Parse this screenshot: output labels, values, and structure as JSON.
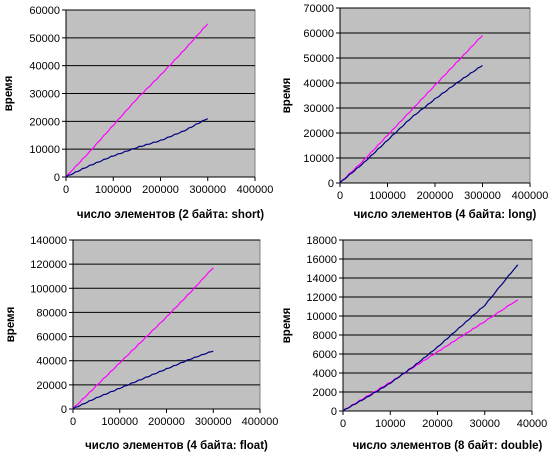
{
  "chart_data": [
    {
      "type": "line",
      "xlabel": "число элементов (2 байта: short)",
      "ylabel": "время",
      "xlim": [
        0,
        400000
      ],
      "ylim": [
        0,
        60000
      ],
      "xticks": [
        0,
        100000,
        200000,
        300000,
        400000
      ],
      "yticks": [
        0,
        10000,
        20000,
        30000,
        40000,
        50000,
        60000
      ],
      "grid": "horizontal",
      "plot_bg": "#c0c0c0",
      "series": [
        {
          "color": "#ff00ff",
          "x": [
            0,
            50000,
            100000,
            150000,
            200000,
            250000,
            300000
          ],
          "y": [
            0,
            9000,
            18500,
            28000,
            36500,
            45500,
            55000
          ]
        },
        {
          "color": "#000080",
          "x": [
            0,
            50000,
            100000,
            150000,
            200000,
            250000,
            300000
          ],
          "y": [
            0,
            4000,
            7500,
            10500,
            13000,
            16500,
            21000
          ]
        }
      ]
    },
    {
      "type": "line",
      "xlabel": "число элементов (4 байта: long)",
      "ylabel": "время",
      "xlim": [
        0,
        400000
      ],
      "ylim": [
        0,
        70000
      ],
      "xticks": [
        0,
        100000,
        200000,
        300000,
        400000
      ],
      "yticks": [
        0,
        10000,
        20000,
        30000,
        40000,
        50000,
        60000,
        70000
      ],
      "grid": "horizontal",
      "plot_bg": "#c0c0c0",
      "series": [
        {
          "color": "#ff00ff",
          "x": [
            0,
            50000,
            100000,
            150000,
            200000,
            250000,
            300000
          ],
          "y": [
            0,
            9000,
            19000,
            29000,
            39000,
            49000,
            59000
          ]
        },
        {
          "color": "#000080",
          "x": [
            0,
            50000,
            100000,
            150000,
            200000,
            250000,
            300000
          ],
          "y": [
            0,
            8000,
            17000,
            26000,
            33500,
            40500,
            47000
          ]
        }
      ]
    },
    {
      "type": "line",
      "xlabel": "число элементов (4 байта: float)",
      "ylabel": "время",
      "xlim": [
        0,
        400000
      ],
      "ylim": [
        0,
        140000
      ],
      "xticks": [
        0,
        100000,
        200000,
        300000,
        400000
      ],
      "yticks": [
        0,
        20000,
        40000,
        60000,
        80000,
        100000,
        120000,
        140000
      ],
      "grid": "horizontal",
      "plot_bg": "#c0c0c0",
      "series": [
        {
          "color": "#ff00ff",
          "x": [
            0,
            50000,
            100000,
            150000,
            200000,
            250000,
            300000
          ],
          "y": [
            0,
            19000,
            38000,
            57000,
            76000,
            96000,
            117000
          ]
        },
        {
          "color": "#000080",
          "x": [
            0,
            50000,
            100000,
            150000,
            200000,
            250000,
            300000
          ],
          "y": [
            0,
            9000,
            17000,
            25000,
            33000,
            41000,
            48000
          ]
        }
      ]
    },
    {
      "type": "line",
      "xlabel": "число элементов (8 байт: double)",
      "ylabel": "время",
      "xlim": [
        0,
        40000
      ],
      "ylim": [
        0,
        18000
      ],
      "xticks": [
        0,
        10000,
        20000,
        30000,
        40000
      ],
      "yticks": [
        0,
        2000,
        4000,
        6000,
        8000,
        10000,
        12000,
        14000,
        16000,
        18000
      ],
      "grid": "horizontal",
      "plot_bg": "#c0c0c0",
      "series": [
        {
          "color": "#ff00ff",
          "x": [
            0,
            5000,
            10000,
            15000,
            20000,
            25000,
            30000,
            37000
          ],
          "y": [
            0,
            1500,
            3000,
            4600,
            6200,
            7800,
            9400,
            11700
          ]
        },
        {
          "color": "#000080",
          "x": [
            0,
            5000,
            10000,
            15000,
            20000,
            25000,
            30000,
            37000
          ],
          "y": [
            0,
            1400,
            2900,
            4700,
            6700,
            8900,
            11100,
            15400
          ]
        }
      ]
    }
  ]
}
